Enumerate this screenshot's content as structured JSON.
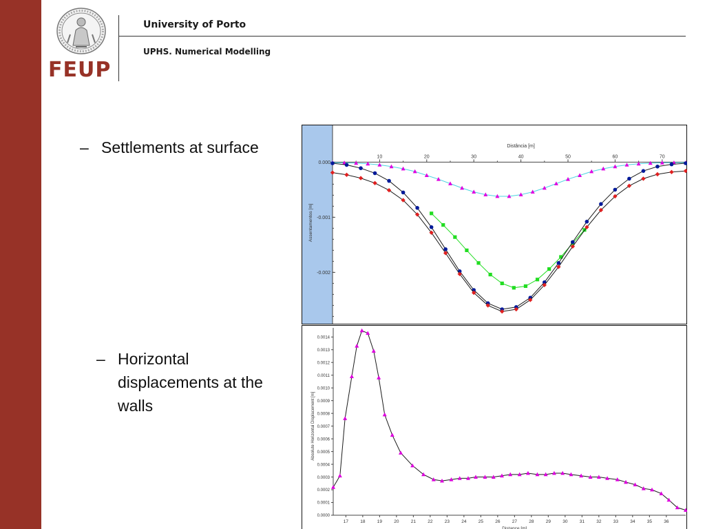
{
  "header": {
    "university": "University of Porto",
    "course": "UPHS. Numerical Modelling",
    "logo_text": "FEUP"
  },
  "colors": {
    "sidebar": "#973227",
    "logo_text": "#973227",
    "chart_strip": "#a9c8ec"
  },
  "bullets": [
    {
      "dash": "–",
      "text": "Settlements at surface"
    },
    {
      "dash": "–",
      "text": "Horizontal displacements at the walls"
    }
  ],
  "chart_data": [
    {
      "type": "line",
      "xlabel": "Distância [m]",
      "ylabel": "Assentamentos [m]",
      "xlim": [
        0,
        75
      ],
      "ylim": [
        -0.00292,
        3e-05
      ],
      "x_ticks": [
        10,
        20,
        30,
        40,
        50,
        60,
        70
      ],
      "y_ticks": [
        {
          "value": 0.0,
          "label": "0.000"
        },
        {
          "value": -0.001,
          "label": "-0.001"
        },
        {
          "value": -0.002,
          "label": "-0.002"
        }
      ],
      "grid": false,
      "series": [
        {
          "marker": "triangle",
          "color": "#e000e0",
          "line_color": "#4ad4e0",
          "x": [
            0,
            2.5,
            5,
            7.5,
            10,
            12.5,
            15,
            17.5,
            20,
            22.5,
            25,
            27.5,
            30,
            32.5,
            35,
            37.5,
            40,
            42.5,
            45,
            47.5,
            50,
            52.5,
            55,
            57.5,
            60,
            62.5,
            65,
            67.5,
            70,
            72.5,
            75
          ],
          "y": [
            -1e-05,
            -1.2e-05,
            -1.8e-05,
            -3e-05,
            -5e-05,
            -8e-05,
            -0.00012,
            -0.00017,
            -0.00024,
            -0.00031,
            -0.00039,
            -0.00047,
            -0.00054,
            -0.00059,
            -0.00062,
            -0.00062,
            -0.00059,
            -0.00054,
            -0.00047,
            -0.00039,
            -0.00031,
            -0.00024,
            -0.00017,
            -0.00012,
            -8e-05,
            -5e-05,
            -3e-05,
            -1.8e-05,
            -1.2e-05,
            -1e-05,
            -8e-06
          ]
        },
        {
          "marker": "square",
          "color": "#22dd22",
          "line_color": "#22dd22",
          "x": [
            21,
            23.5,
            26,
            28.5,
            31,
            33.5,
            36,
            38.5,
            41,
            43.5,
            46,
            48.5,
            51,
            53.5
          ],
          "y": [
            -0.00093,
            -0.00114,
            -0.00136,
            -0.0016,
            -0.00183,
            -0.00204,
            -0.0022,
            -0.00228,
            -0.00225,
            -0.00213,
            -0.00194,
            -0.00172,
            -0.00147,
            -0.00123
          ]
        },
        {
          "marker": "circle",
          "color": "#001a99",
          "line_color": "#1a1a1a",
          "x": [
            0,
            3,
            6,
            9,
            12,
            15,
            18,
            21,
            24,
            27,
            30,
            33,
            36,
            39,
            42,
            45,
            48,
            51,
            54,
            57,
            60,
            63,
            66,
            69,
            72,
            75
          ],
          "y": [
            -2e-05,
            -5e-05,
            -0.00011,
            -0.0002,
            -0.00034,
            -0.00055,
            -0.00083,
            -0.00118,
            -0.00158,
            -0.00198,
            -0.00232,
            -0.00256,
            -0.00267,
            -0.00263,
            -0.00246,
            -0.00218,
            -0.00183,
            -0.00145,
            -0.00108,
            -0.00076,
            -0.0005,
            -0.0003,
            -0.00016,
            -8e-05,
            -4e-05,
            -2e-05
          ]
        },
        {
          "marker": "diamond",
          "color": "#e02020",
          "line_color": "#1a1a1a",
          "x": [
            0,
            3,
            6,
            9,
            12,
            15,
            18,
            21,
            24,
            27,
            30,
            33,
            36,
            39,
            42,
            45,
            48,
            51,
            54,
            57,
            60,
            63,
            66,
            69,
            72,
            75
          ],
          "y": [
            -0.00019,
            -0.00023,
            -0.00029,
            -0.00038,
            -0.00051,
            -0.00069,
            -0.00095,
            -0.00128,
            -0.00165,
            -0.00203,
            -0.00237,
            -0.0026,
            -0.00271,
            -0.00267,
            -0.0025,
            -0.00223,
            -0.0019,
            -0.00153,
            -0.00118,
            -0.00087,
            -0.00062,
            -0.00043,
            -0.0003,
            -0.00022,
            -0.00018,
            -0.00016
          ]
        }
      ]
    },
    {
      "type": "line",
      "xlabel": "Distance [m]",
      "ylabel": "Absolute Horizontal Displacement [m]",
      "xlim": [
        16.25,
        37.15
      ],
      "ylim": [
        0,
        0.00145
      ],
      "x_ticks": [
        17,
        18,
        19,
        20,
        21,
        22,
        23,
        24,
        25,
        26,
        27,
        28,
        29,
        30,
        31,
        32,
        33,
        34,
        35,
        36
      ],
      "y_ticks": [
        {
          "value": 0.0,
          "label": "0.0000"
        },
        {
          "value": 0.0001,
          "label": "0.0001"
        },
        {
          "value": 0.0002,
          "label": "0.0002"
        },
        {
          "value": 0.0003,
          "label": "0.0003"
        },
        {
          "value": 0.0004,
          "label": "0.0004"
        },
        {
          "value": 0.0005,
          "label": "0.0005"
        },
        {
          "value": 0.0006,
          "label": "0.0006"
        },
        {
          "value": 0.0007,
          "label": "0.0007"
        },
        {
          "value": 0.0008,
          "label": "0.0008"
        },
        {
          "value": 0.0009,
          "label": "0.0009"
        },
        {
          "value": 0.001,
          "label": "0.0010"
        },
        {
          "value": 0.0011,
          "label": "0.0011"
        },
        {
          "value": 0.0012,
          "label": "0.0012"
        },
        {
          "value": 0.0013,
          "label": "0.0013"
        },
        {
          "value": 0.0014,
          "label": "0.0014"
        }
      ],
      "grid": false,
      "series": [
        {
          "marker": "triangle",
          "color": "#dd00dd",
          "line_color": "#1a1a1a",
          "x": [
            16.25,
            16.65,
            16.95,
            17.35,
            17.65,
            17.95,
            18.3,
            18.65,
            18.95,
            19.3,
            19.75,
            20.25,
            20.95,
            21.6,
            22.2,
            22.7,
            23.25,
            23.75,
            24.25,
            24.7,
            25.25,
            25.75,
            26.25,
            26.75,
            27.3,
            27.8,
            28.35,
            28.85,
            29.35,
            29.85,
            30.35,
            30.95,
            31.5,
            32.0,
            32.5,
            33.1,
            33.6,
            34.15,
            34.65,
            35.15,
            35.7,
            36.15,
            36.65,
            37.15
          ],
          "y": [
            0.00022,
            0.00031,
            0.00076,
            0.00109,
            0.00133,
            0.00145,
            0.00143,
            0.00129,
            0.00108,
            0.00079,
            0.00063,
            0.00049,
            0.00039,
            0.00032,
            0.00028,
            0.00027,
            0.00028,
            0.00029,
            0.00029,
            0.0003,
            0.0003,
            0.0003,
            0.00031,
            0.00032,
            0.00032,
            0.00033,
            0.00032,
            0.00032,
            0.00033,
            0.00033,
            0.00032,
            0.00031,
            0.0003,
            0.0003,
            0.00029,
            0.00028,
            0.00026,
            0.00024,
            0.00021,
            0.0002,
            0.00017,
            0.00012,
            6e-05,
            4e-05
          ]
        }
      ]
    }
  ]
}
